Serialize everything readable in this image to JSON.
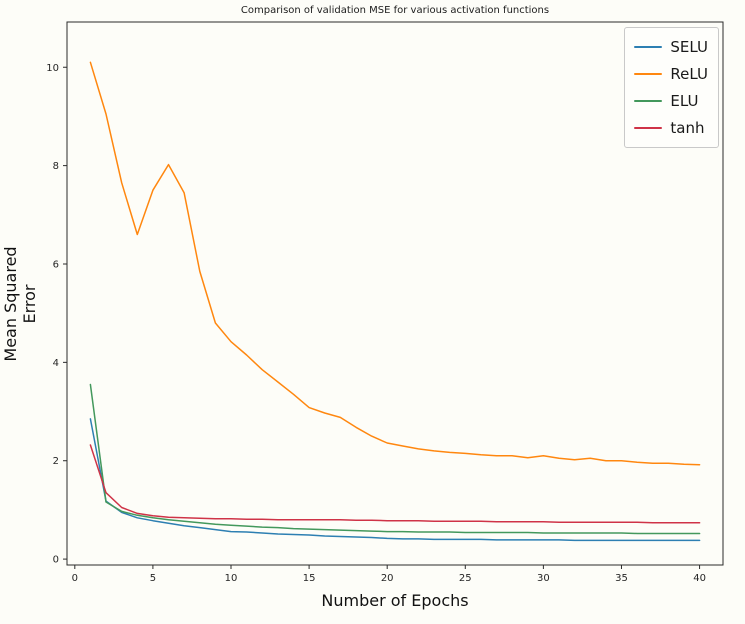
{
  "colors": {
    "figure_bg": "#fdfdf8",
    "axes_bg": "#fdfdf8",
    "spine": "#2a2a2a",
    "tick_text": "#262626",
    "selu": "#2d7fb2",
    "relu": "#ff870f",
    "elu": "#43985c",
    "tanh": "#cf3347"
  },
  "chart_data": {
    "type": "line",
    "title": "Comparison of validation MSE for various activation functions",
    "xlabel": "Number of Epochs",
    "ylabel": "Mean Squared Error",
    "xlim": [
      -0.5,
      41.5
    ],
    "ylim": [
      -0.12,
      10.92
    ],
    "xticks": [
      0,
      5,
      10,
      15,
      20,
      25,
      30,
      35,
      40
    ],
    "yticks": [
      0,
      2,
      4,
      6,
      8,
      10
    ],
    "grid": false,
    "legend_position": "upper right",
    "x": [
      1,
      2,
      3,
      4,
      5,
      6,
      7,
      8,
      9,
      10,
      11,
      12,
      13,
      14,
      15,
      16,
      17,
      18,
      19,
      20,
      21,
      22,
      23,
      24,
      25,
      26,
      27,
      28,
      29,
      30,
      31,
      32,
      33,
      34,
      35,
      36,
      37,
      38,
      39,
      40
    ],
    "series": [
      {
        "name": "SELU",
        "color": "#2d7fb2",
        "values": [
          2.85,
          1.18,
          0.95,
          0.84,
          0.78,
          0.73,
          0.68,
          0.64,
          0.6,
          0.56,
          0.55,
          0.53,
          0.51,
          0.5,
          0.49,
          0.47,
          0.46,
          0.45,
          0.44,
          0.42,
          0.41,
          0.41,
          0.4,
          0.4,
          0.4,
          0.4,
          0.39,
          0.39,
          0.39,
          0.39,
          0.39,
          0.38,
          0.38,
          0.38,
          0.38,
          0.38,
          0.38,
          0.38,
          0.38,
          0.38
        ]
      },
      {
        "name": "ReLU",
        "color": "#ff870f",
        "values": [
          10.1,
          9.05,
          7.65,
          6.6,
          7.5,
          8.02,
          7.45,
          5.85,
          4.8,
          4.42,
          4.15,
          3.85,
          3.6,
          3.35,
          3.08,
          2.97,
          2.88,
          2.68,
          2.5,
          2.36,
          2.3,
          2.24,
          2.2,
          2.17,
          2.15,
          2.12,
          2.1,
          2.1,
          2.06,
          2.1,
          2.05,
          2.02,
          2.05,
          2.0,
          2.0,
          1.97,
          1.95,
          1.95,
          1.93,
          1.92
        ]
      },
      {
        "name": "ELU",
        "color": "#43985c",
        "values": [
          3.55,
          1.16,
          0.97,
          0.89,
          0.84,
          0.8,
          0.77,
          0.74,
          0.71,
          0.69,
          0.67,
          0.65,
          0.64,
          0.62,
          0.61,
          0.6,
          0.59,
          0.58,
          0.57,
          0.56,
          0.56,
          0.55,
          0.55,
          0.55,
          0.54,
          0.54,
          0.54,
          0.54,
          0.54,
          0.53,
          0.53,
          0.53,
          0.53,
          0.53,
          0.53,
          0.52,
          0.52,
          0.52,
          0.52,
          0.52
        ]
      },
      {
        "name": "tanh",
        "color": "#cf3347",
        "values": [
          2.32,
          1.35,
          1.05,
          0.93,
          0.88,
          0.85,
          0.84,
          0.83,
          0.82,
          0.82,
          0.81,
          0.81,
          0.8,
          0.8,
          0.8,
          0.8,
          0.8,
          0.79,
          0.79,
          0.78,
          0.78,
          0.78,
          0.77,
          0.77,
          0.77,
          0.77,
          0.76,
          0.76,
          0.76,
          0.76,
          0.75,
          0.75,
          0.75,
          0.75,
          0.75,
          0.75,
          0.74,
          0.74,
          0.74,
          0.74
        ]
      }
    ]
  }
}
